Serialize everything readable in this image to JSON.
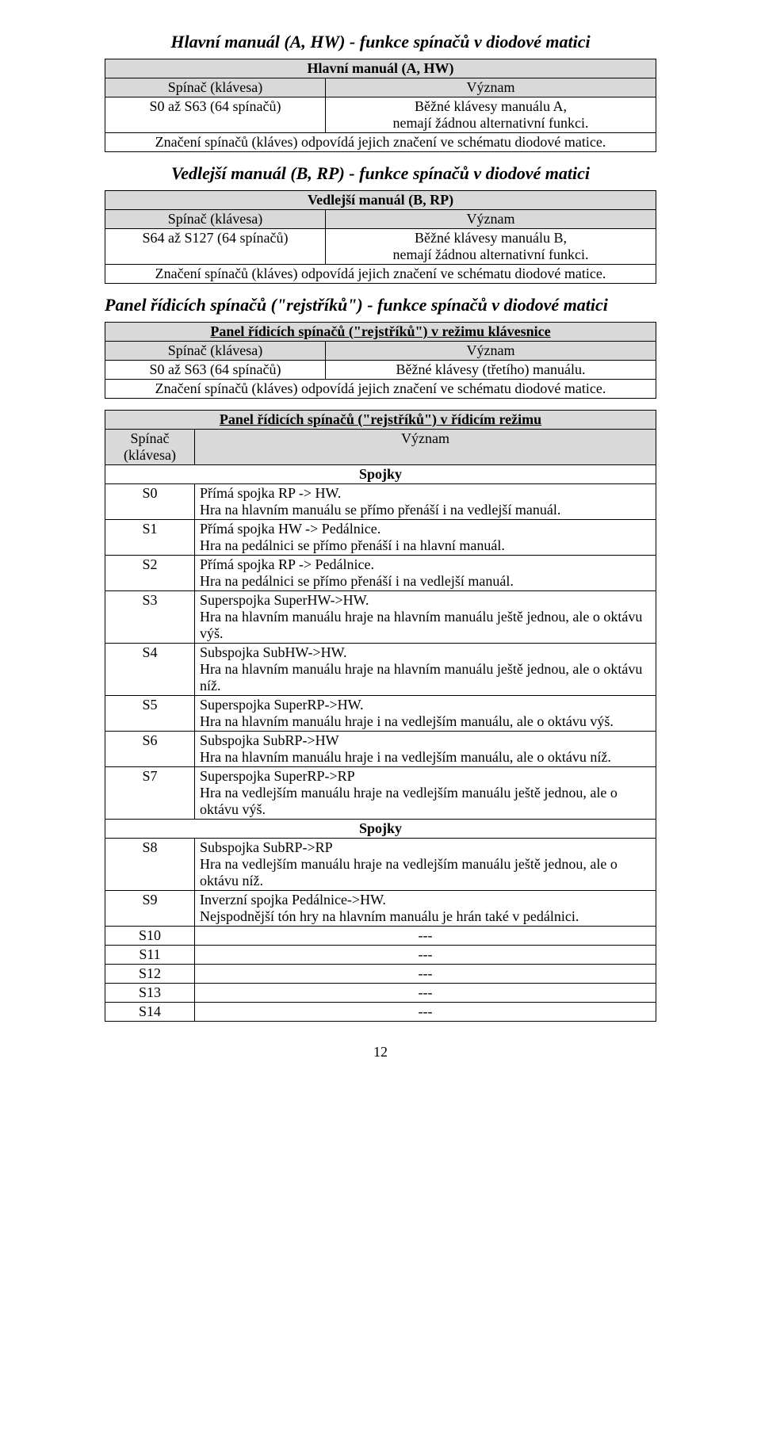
{
  "section1": {
    "title": "Hlavní manuál (A, HW) - funkce spínačů v diodové matici",
    "table_title": "Hlavní manuál (A, HW)",
    "hdr_left": "Spínač (klávesa)",
    "hdr_right": "Význam",
    "row_key": "S0 až S63 (64 spínačů)",
    "row_val": "Běžné klávesy manuálu A,\nnemají žádnou alternativní funkci.",
    "footer": "Značení spínačů (kláves) odpovídá jejich značení ve schématu diodové matice."
  },
  "section2": {
    "title": "Vedlejší manuál (B, RP) - funkce spínačů v diodové matici",
    "table_title": "Vedlejší manuál (B, RP)",
    "hdr_left": "Spínač (klávesa)",
    "hdr_right": "Význam",
    "row_key": "S64 až S127 (64 spínačů)",
    "row_val": "Běžné klávesy manuálu B,\nnemají žádnou alternativní funkci.",
    "footer": "Značení spínačů (kláves) odpovídá jejich značení ve schématu diodové matice."
  },
  "section3": {
    "title": "Panel řídicích spínačů (\"rejstříků\") - funkce spínačů v diodové matici",
    "sub_a": {
      "table_title": "Panel řídicích spínačů (\"rejstříků\") v režimu klávesnice",
      "hdr_left": "Spínač (klávesa)",
      "hdr_right": "Význam",
      "row_key": "S0 až S63 (64 spínačů)",
      "row_val": "Běžné klávesy (třetího) manuálu.",
      "footer": "Značení spínačů (kláves) odpovídá jejich značení ve schématu diodové matice."
    },
    "sub_b": {
      "table_title": "Panel řídicích spínačů (\"rejstříků\") v řídicím režimu",
      "hdr_left": "Spínač\n(klávesa)",
      "hdr_right": "Význam",
      "group1": "Spojky",
      "group2": "Spojky",
      "rows": [
        {
          "k": "S0",
          "v": "Přímá spojka RP -> HW.\nHra na hlavním manuálu se přímo přenáší i na vedlejší manuál."
        },
        {
          "k": "S1",
          "v": "Přímá spojka HW -> Pedálnice.\nHra na pedálnici se přímo přenáší i na hlavní manuál."
        },
        {
          "k": "S2",
          "v": "Přímá spojka RP -> Pedálnice.\nHra na pedálnici se přímo přenáší i na vedlejší manuál."
        },
        {
          "k": "S3",
          "v": "Superspojka SuperHW->HW.\nHra na hlavním manuálu hraje na hlavním manuálu ještě jednou, ale o oktávu výš."
        },
        {
          "k": "S4",
          "v": "Subspojka SubHW->HW.\nHra na hlavním manuálu hraje na hlavním manuálu ještě jednou, ale o oktávu níž."
        },
        {
          "k": "S5",
          "v": "Superspojka SuperRP->HW.\nHra na hlavním manuálu hraje i na vedlejším manuálu, ale o oktávu výš."
        },
        {
          "k": "S6",
          "v": "Subspojka SubRP->HW\nHra na hlavním manuálu hraje i na vedlejším manuálu, ale o oktávu níž."
        },
        {
          "k": "S7",
          "v": "Superspojka SuperRP->RP\nHra na vedlejším manuálu hraje na vedlejším manuálu ještě jednou, ale o oktávu výš."
        },
        {
          "k": "S8",
          "v": "Subspojka SubRP->RP\nHra na vedlejším manuálu hraje na vedlejším manuálu ještě jednou, ale o oktávu níž."
        },
        {
          "k": "S9",
          "v": "Inverzní spojka Pedálnice->HW.\nNejspodnější tón hry na hlavním manuálu je hrán také v pedálnici."
        },
        {
          "k": "S10",
          "v": "---"
        },
        {
          "k": "S11",
          "v": "---"
        },
        {
          "k": "S12",
          "v": "---"
        },
        {
          "k": "S13",
          "v": "---"
        },
        {
          "k": "S14",
          "v": "---"
        }
      ]
    }
  },
  "page_number": "12"
}
